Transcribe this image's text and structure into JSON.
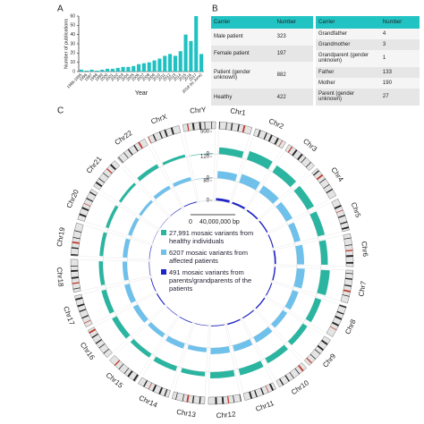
{
  "panel_labels": [
    "A",
    "B",
    "C"
  ],
  "chart_data": [
    {
      "type": "bar",
      "ylabel": "Number of publications",
      "xlabel": "Year",
      "categories": [
        "1986-1995",
        "1996",
        "1997",
        "1998",
        "1999",
        "2000",
        "2001",
        "2002",
        "2003",
        "2004",
        "2005",
        "2006",
        "2007",
        "2008",
        "2009",
        "2010",
        "2011",
        "2012",
        "2013",
        "2014",
        "2015",
        "2016",
        "2017",
        "2018 (to June)"
      ],
      "values": [
        2,
        1,
        2,
        1,
        2,
        3,
        3,
        4,
        5,
        5,
        6,
        8,
        9,
        10,
        12,
        14,
        17,
        19,
        17,
        22,
        40,
        33,
        60,
        19
      ],
      "color": "#1fc1c3",
      "ylim": [
        0,
        60
      ],
      "yticks": [
        0,
        10,
        20,
        30,
        40,
        50,
        60
      ],
      "grid": false
    },
    {
      "type": "circos",
      "chromosomes": [
        "Chr1",
        "Chr2",
        "Chr3",
        "Chr4",
        "Chr5",
        "Chr6",
        "Chr7",
        "Chr8",
        "Chr9",
        "Chr10",
        "Chr11",
        "Chr12",
        "Chr13",
        "Chr14",
        "Chr15",
        "Chr16",
        "Chr17",
        "Chr18",
        "Chr19",
        "Chr20",
        "Chr21",
        "Chr22",
        "ChrX",
        "ChrY"
      ],
      "scale_bar": {
        "start": "0",
        "label": "40,000,000 bp"
      },
      "series": [
        {
          "name": "27,991 mosaic variants from healthy individuals",
          "color": "#2bb5a0",
          "ylim": [
            0,
            500
          ],
          "yticks": [
            0,
            500
          ],
          "values": [
            150,
            200,
            180,
            170,
            160,
            150,
            200,
            140,
            120,
            130,
            150,
            140,
            100,
            110,
            100,
            120,
            110,
            90,
            80,
            70,
            60,
            90,
            60,
            10
          ]
        },
        {
          "name": "6207 mosaic variants from affected patients",
          "color": "#6fc0ea",
          "ylim": [
            0,
            120
          ],
          "yticks": [
            0,
            120
          ],
          "values": [
            40,
            50,
            45,
            40,
            35,
            40,
            45,
            35,
            30,
            35,
            35,
            35,
            25,
            30,
            25,
            30,
            30,
            25,
            25,
            20,
            15,
            20,
            20,
            2
          ]
        },
        {
          "name": "491 mosaic variants from parents/grandparents of the patients",
          "color": "#1f24c8",
          "ylim": [
            0,
            80
          ],
          "yticks": [
            0,
            80
          ],
          "values": [
            10,
            8,
            6,
            5,
            4,
            6,
            5,
            4,
            5,
            4,
            5,
            3,
            2,
            3,
            2,
            4,
            3,
            2,
            2,
            1,
            1,
            2,
            3,
            0
          ]
        }
      ]
    }
  ],
  "tables": [
    {
      "header": [
        "Carrier",
        "Number"
      ],
      "rows": [
        [
          "Male patient",
          323
        ],
        [
          "Female patient",
          197
        ],
        [
          "Patient (gender unknown)",
          882
        ],
        [
          "Healthy",
          422
        ]
      ]
    },
    {
      "header": [
        "Carrier",
        "Number"
      ],
      "rows": [
        [
          "Grandfather",
          4
        ],
        [
          "Grandmother",
          3
        ],
        [
          "Grandparent (gender unknown)",
          1
        ],
        [
          "Father",
          133
        ],
        [
          "Mother",
          190
        ],
        [
          "Parent (gender unknown)",
          27
        ]
      ]
    }
  ]
}
